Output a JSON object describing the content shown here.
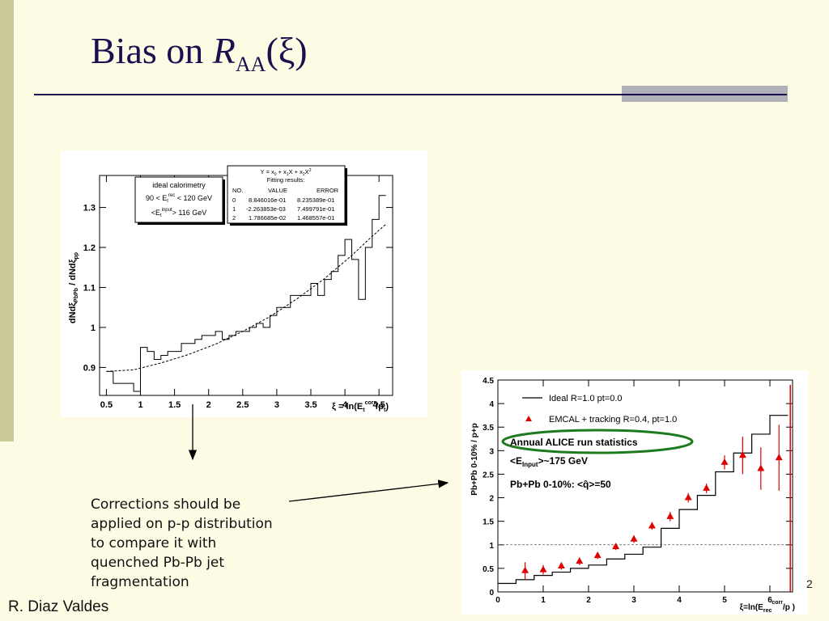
{
  "slide": {
    "title_prefix": "Bias on ",
    "title_symbol": "R",
    "title_subscript": "AA",
    "title_suffix": "(ξ)",
    "description_lines": [
      "Corrections should be",
      "applied on p-p distribution",
      "to compare it with",
      "quenched Pb-Pb jet",
      "fragmentation"
    ],
    "author": "R. Diaz Valdes",
    "page_number": "2",
    "colors": {
      "background": "#fdfbe4",
      "title": "#1a1050",
      "accent_bar": "#c9c99a",
      "rule_box": "#b0b0b8"
    }
  },
  "chart_data": [
    {
      "type": "line",
      "xlim": [
        0.4,
        4.7
      ],
      "ylim": [
        0.83,
        1.38
      ],
      "xticks": [
        0.5,
        1,
        1.5,
        2,
        2.5,
        3,
        3.5,
        4,
        4.5
      ],
      "yticks": [
        0.9,
        1,
        1.1,
        1.2,
        1.3
      ],
      "xlabel": {
        "prefix": "ξ = ln(E",
        "sub": "t",
        "sup": "corr",
        "suffix": "/p",
        "sub2": "t",
        "close": ")"
      },
      "ylabel": {
        "a": "dNdξ",
        "a_sub": "PbPb",
        "b": " / dNdξ",
        "b_sub": "pp"
      },
      "legend": {
        "lines": [
          "ideal calorimetry",
          {
            "pre": "90 < E",
            "sub": "t",
            "sup": "rec",
            "post": " < 120 GeV"
          },
          {
            "pre": "<E",
            "sub": "t",
            "sup": "input",
            "post": "> 116 GeV"
          }
        ]
      },
      "fit_box": {
        "formula": {
          "pre": "Y = x",
          "s0": "0",
          "m1": " + x",
          "s1": "1",
          "m2": "X + x",
          "s2": "2",
          "m3": "X",
          "sup": "2"
        },
        "title": "Fitting results:",
        "headers": [
          "NO.",
          "VALUE",
          "ERROR"
        ],
        "rows": [
          [
            "0",
            "8.846016e-01",
            "8.235389e-01"
          ],
          [
            "1",
            "-2.263853e-03",
            "7.499791e-01"
          ],
          [
            "2",
            "1.786685e-02",
            "1.468557e-01"
          ]
        ]
      },
      "series": [
        {
          "style": "histogram",
          "bins": [
            [
              0.5,
              0.6,
              0.89
            ],
            [
              0.6,
              0.7,
              0.86
            ],
            [
              0.7,
              0.8,
              0.86
            ],
            [
              0.8,
              0.9,
              0.86
            ],
            [
              0.9,
              1.0,
              0.84
            ],
            [
              1.0,
              1.1,
              0.95
            ],
            [
              1.1,
              1.2,
              0.94
            ],
            [
              1.2,
              1.3,
              0.92
            ],
            [
              1.3,
              1.4,
              0.93
            ],
            [
              1.4,
              1.5,
              0.94
            ],
            [
              1.5,
              1.6,
              0.94
            ],
            [
              1.6,
              1.7,
              0.96
            ],
            [
              1.7,
              1.8,
              0.96
            ],
            [
              1.8,
              1.9,
              0.97
            ],
            [
              1.9,
              2.0,
              0.98
            ],
            [
              2.0,
              2.1,
              0.98
            ],
            [
              2.1,
              2.2,
              0.99
            ],
            [
              2.2,
              2.3,
              0.97
            ],
            [
              2.3,
              2.4,
              0.98
            ],
            [
              2.4,
              2.5,
              0.99
            ],
            [
              2.5,
              2.6,
              0.99
            ],
            [
              2.6,
              2.7,
              1.0
            ],
            [
              2.7,
              2.8,
              1.01
            ],
            [
              2.8,
              2.9,
              1.0
            ],
            [
              2.9,
              3.0,
              1.03
            ],
            [
              3.0,
              3.1,
              1.05
            ],
            [
              3.1,
              3.2,
              1.05
            ],
            [
              3.2,
              3.3,
              1.08
            ],
            [
              3.3,
              3.4,
              1.08
            ],
            [
              3.4,
              3.5,
              1.08
            ],
            [
              3.5,
              3.6,
              1.11
            ],
            [
              3.6,
              3.7,
              1.08
            ],
            [
              3.7,
              3.8,
              1.12
            ],
            [
              3.8,
              3.9,
              1.14
            ],
            [
              3.9,
              4.0,
              1.18
            ],
            [
              4.0,
              4.1,
              1.22
            ],
            [
              4.1,
              4.2,
              1.17
            ],
            [
              4.2,
              4.3,
              1.07
            ],
            [
              4.3,
              4.4,
              1.2
            ],
            [
              4.4,
              4.5,
              1.27
            ],
            [
              4.5,
              4.6,
              1.33
            ]
          ]
        },
        {
          "style": "dashed-fit",
          "x": [
            0.5,
            0.9,
            1.3,
            1.7,
            2.1,
            2.5,
            2.9,
            3.3,
            3.7,
            4.1,
            4.4,
            4.6
          ],
          "y": [
            0.89,
            0.894,
            0.911,
            0.932,
            0.958,
            0.99,
            1.027,
            1.072,
            1.122,
            1.18,
            1.228,
            1.258
          ]
        }
      ]
    },
    {
      "type": "line",
      "xlim": [
        0,
        6.5
      ],
      "ylim": [
        0,
        4.5
      ],
      "xticks": [
        0,
        1,
        2,
        3,
        4,
        5,
        6
      ],
      "yticks": [
        0,
        0.5,
        1,
        1.5,
        2,
        2.5,
        3,
        3.5,
        4,
        4.5
      ],
      "xlabel": {
        "prefix": "ξ=ln(E",
        "sub": "rec",
        "sup": "corr",
        "suffix": "/p )"
      },
      "ylabel": "Pb+Pb 0-10% / p+p",
      "reference_line": 1.0,
      "legend": {
        "ideal": "Ideal R=1.0 pt=0.0",
        "emcal": "EMCAL + tracking R=0.4, pt=1.0"
      },
      "annotations": {
        "circled": "Annual ALICE run statistics",
        "einput": {
          "pre": "<E",
          "sub": "Input",
          "post": ">~175 GeV"
        },
        "qhat": "Pb+Pb 0-10%: <q̂>=50"
      },
      "series": [
        {
          "name": "Ideal R=1.0 pt=0.0",
          "style": "step",
          "edges": [
            0,
            0.4,
            0.8,
            1.2,
            1.6,
            2.0,
            2.4,
            2.8,
            3.2,
            3.6,
            4.0,
            4.4,
            4.8,
            5.2,
            5.6,
            6.0,
            6.4
          ],
          "values": [
            0.18,
            0.26,
            0.35,
            0.42,
            0.5,
            0.57,
            0.7,
            0.8,
            0.95,
            1.35,
            1.75,
            2.05,
            2.55,
            2.95,
            3.35,
            3.75
          ]
        },
        {
          "name": "EMCAL + tracking R=0.4, pt=1.0",
          "style": "markers",
          "x": [
            0.6,
            1.0,
            1.4,
            1.8,
            2.2,
            2.6,
            3.0,
            3.4,
            3.8,
            4.2,
            4.6,
            5.0,
            5.4,
            5.8,
            6.2
          ],
          "y": [
            0.45,
            0.47,
            0.55,
            0.65,
            0.77,
            0.96,
            1.12,
            1.4,
            1.6,
            2.0,
            2.2,
            2.75,
            2.9,
            2.62,
            2.85
          ],
          "err": [
            0.18,
            0.1,
            0.08,
            0.08,
            0.07,
            0.07,
            0.08,
            0.08,
            0.1,
            0.1,
            0.1,
            0.15,
            0.4,
            0.45,
            0.7
          ]
        },
        {
          "style": "error-bar",
          "x": [
            6.45
          ],
          "y": [
            2.2
          ],
          "err": [
            2.2
          ]
        }
      ]
    }
  ]
}
